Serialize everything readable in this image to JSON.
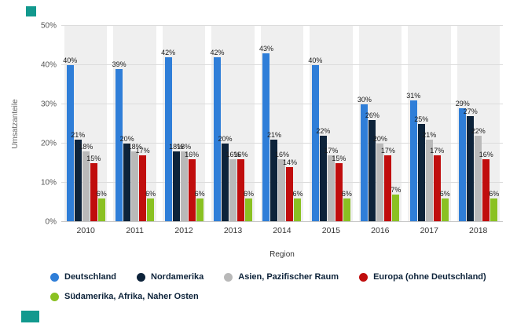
{
  "brand": {
    "accent_color": "#12998e"
  },
  "chart_data": {
    "type": "bar",
    "title": "",
    "xlabel": "Region",
    "ylabel": "Umsatzanteile",
    "categories": [
      "2010",
      "2011",
      "2012",
      "2013",
      "2014",
      "2015",
      "2016",
      "2017",
      "2018"
    ],
    "series": [
      {
        "name": "Deutschland",
        "color": "#2f7ed8",
        "values": [
          40,
          39,
          42,
          42,
          43,
          40,
          30,
          31,
          29
        ]
      },
      {
        "name": "Nordamerika",
        "color": "#0d233a",
        "values": [
          21,
          20,
          18,
          20,
          21,
          22,
          26,
          25,
          27
        ]
      },
      {
        "name": "Asien, Pazifischer Raum",
        "color": "#b9b9b9",
        "values": [
          18,
          18,
          18,
          16,
          16,
          17,
          20,
          21,
          22
        ]
      },
      {
        "name": "Europa (ohne Deutschland)",
        "color": "#c00d0d",
        "values": [
          15,
          17,
          16,
          16,
          14,
          15,
          17,
          17,
          16
        ]
      },
      {
        "name": "Südamerika, Afrika, Naher Osten",
        "color": "#8ac122",
        "values": [
          6,
          6,
          6,
          6,
          6,
          6,
          7,
          6,
          6
        ]
      }
    ],
    "ylim": [
      0,
      50
    ],
    "yticks": [
      "0%",
      "10%",
      "20%",
      "30%",
      "40%",
      "50%"
    ],
    "grid": true,
    "plot_bands": "behind each category group",
    "band_color": "#efefef",
    "gridline_color": "#dcdcdc",
    "data_label_suffix": "%",
    "legend_position": "bottom"
  }
}
